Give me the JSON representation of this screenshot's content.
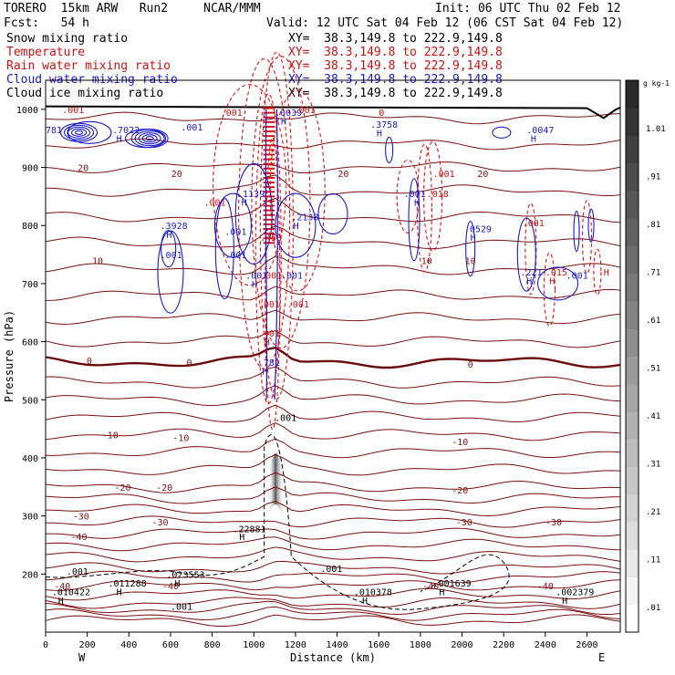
{
  "header": {
    "model": "TORERO  15km ARW   Run2     NCAR/MMM",
    "forecast": "Fcst:   54 h",
    "init": "Init: 06 UTC Thu 02 Feb 12",
    "valid": "Valid: 12 UTC Sat 04 Feb 12 (06 CST Sat 04 Feb 12)"
  },
  "legend": [
    {
      "label": "Snow mixing ratio",
      "xy": "XY=  38.3,149.8 to 222.9,149.8",
      "color": "#000000"
    },
    {
      "label": "Temperature",
      "xy": "XY=  38.3,149.8 to 222.9,149.8",
      "color": "#cc1111"
    },
    {
      "label": "Rain water mixing ratio",
      "xy": "XY=  38.3,149.8 to 222.9,149.8",
      "color": "#cc1111"
    },
    {
      "label": "Cloud water mixing ratio",
      "xy": "XY=  38.3,149.8 to 222.9,149.8",
      "color": "#1a1acc"
    },
    {
      "label": "Cloud ice mixing ratio",
      "xy": "XY=  38.3,149.8 to 222.9,149.8",
      "color": "#000000"
    }
  ],
  "chart_data": {
    "type": "contour-cross-section",
    "xlabel": "Distance (km)",
    "ylabel": "Pressure (hPa)",
    "xlim": [
      0,
      2760
    ],
    "ylim": [
      1050,
      100
    ],
    "xticks": [
      "0",
      "200",
      "400",
      "600",
      "800",
      "1000",
      "1200",
      "1400",
      "1600",
      "1800",
      "2000",
      "2200",
      "2400",
      "2600"
    ],
    "yticks": [
      "200",
      "300",
      "400",
      "500",
      "600",
      "700",
      "800",
      "900",
      "1000"
    ],
    "x_ends": {
      "left": "W",
      "right": "E"
    },
    "colorbar": {
      "unit": "g kg-1",
      "ticks": [
        "1.01",
        ".91",
        ".81",
        ".71",
        ".61",
        ".51",
        ".41",
        ".31",
        ".21",
        ".11",
        ".01"
      ],
      "gray_low": "#ffffff",
      "gray_high": "#2a2a2a"
    },
    "colors": {
      "temperature": "#7a1010",
      "zero_isotherm": "#6b0a0a",
      "rain": "#dd1111",
      "cloud_water": "#1a1acc",
      "cloud_ice": "#000000",
      "snow_shading": "#444444"
    },
    "temperature_labels": [
      {
        "v": "-40",
        "x": 80,
        "p": 180
      },
      {
        "v": "-40",
        "x": 600,
        "p": 180
      },
      {
        "v": "-40",
        "x": 1850,
        "p": 180
      },
      {
        "v": "-40",
        "x": 2400,
        "p": 180
      },
      {
        "v": "-40",
        "x": 160,
        "p": 265
      },
      {
        "v": "-30",
        "x": 170,
        "p": 300
      },
      {
        "v": "-30",
        "x": 550,
        "p": 290
      },
      {
        "v": "-30",
        "x": 2010,
        "p": 290
      },
      {
        "v": "-30",
        "x": 2440,
        "p": 290
      },
      {
        "v": "-20",
        "x": 370,
        "p": 350
      },
      {
        "v": "-20",
        "x": 570,
        "p": 350
      },
      {
        "v": "-20",
        "x": 1990,
        "p": 345
      },
      {
        "v": "-10",
        "x": 310,
        "p": 440
      },
      {
        "v": "-10",
        "x": 650,
        "p": 435
      },
      {
        "v": "-10",
        "x": 1990,
        "p": 428
      },
      {
        "v": "0",
        "x": 210,
        "p": 568
      },
      {
        "v": "0",
        "x": 690,
        "p": 565
      },
      {
        "v": "0",
        "x": 2040,
        "p": 562
      },
      {
        "v": "10",
        "x": 250,
        "p": 740
      },
      {
        "v": "10",
        "x": 1830,
        "p": 740
      },
      {
        "v": "10",
        "x": 2040,
        "p": 740
      },
      {
        "v": "20",
        "x": 180,
        "p": 900
      },
      {
        "v": "20",
        "x": 630,
        "p": 890
      },
      {
        "v": "20",
        "x": 1430,
        "p": 890
      },
      {
        "v": "20",
        "x": 2100,
        "p": 890
      }
    ],
    "extrema_labels": [
      {
        "t": "H",
        "x": 60,
        "p": 155,
        "c": "blk"
      },
      {
        "t": ".010422",
        "x": 30,
        "p": 170,
        "c": "blk"
      },
      {
        "t": "H",
        "x": 340,
        "p": 170,
        "c": "blk"
      },
      {
        "t": ".011288",
        "x": 300,
        "p": 185,
        "c": "blk"
      },
      {
        "t": "H",
        "x": 620,
        "p": 185,
        "c": "blk"
      },
      {
        "t": ".023553",
        "x": 580,
        "p": 200,
        "c": "blk"
      },
      {
        "t": ".001",
        "x": 100,
        "p": 205,
        "c": "blk"
      },
      {
        "t": ".001",
        "x": 600,
        "p": 145,
        "c": "blk"
      },
      {
        "t": "H",
        "x": 930,
        "p": 265,
        "c": "blk"
      },
      {
        "t": ".22881",
        "x": 900,
        "p": 278,
        "c": "blk"
      },
      {
        "t": "H",
        "x": 1520,
        "p": 155,
        "c": "blk"
      },
      {
        "t": ".010378",
        "x": 1480,
        "p": 170,
        "c": "blk"
      },
      {
        "t": "H",
        "x": 1890,
        "p": 170,
        "c": "blk"
      },
      {
        "t": ".001639",
        "x": 1860,
        "p": 185,
        "c": "blk"
      },
      {
        "t": "H",
        "x": 2480,
        "p": 155,
        "c": "blk"
      },
      {
        "t": ".002379",
        "x": 2450,
        "p": 170,
        "c": "blk"
      },
      {
        "t": ".001",
        "x": 1320,
        "p": 210,
        "c": "blk"
      },
      {
        "t": ".001",
        "x": 1100,
        "p": 470,
        "c": "blk"
      },
      {
        "t": "H",
        "x": 1040,
        "p": 550,
        "c": "blu"
      },
      {
        "t": ".781",
        "x": 1020,
        "p": 565,
        "c": "blu"
      },
      {
        "t": "H",
        "x": 1050,
        "p": 600,
        "c": "red"
      },
      {
        "t": ".401",
        "x": 1020,
        "p": 615,
        "c": "red"
      },
      {
        "t": ".001",
        "x": 1020,
        "p": 665,
        "c": "red"
      },
      {
        "t": ".001",
        "x": 1160,
        "p": 665,
        "c": "red"
      },
      {
        "t": "H",
        "x": 990,
        "p": 700,
        "c": "blu"
      },
      {
        "t": ".001",
        "x": 960,
        "p": 715,
        "c": "blu"
      },
      {
        "t": ".001",
        "x": 1030,
        "p": 715,
        "c": "red"
      },
      {
        "t": ".001",
        "x": 1130,
        "p": 715,
        "c": "blu"
      },
      {
        "t": ".001",
        "x": 550,
        "p": 750,
        "c": "blu"
      },
      {
        "t": ".001",
        "x": 860,
        "p": 750,
        "c": "blu"
      },
      {
        "t": "H",
        "x": 580,
        "p": 785,
        "c": "blu"
      },
      {
        "t": ".3928",
        "x": 550,
        "p": 800,
        "c": "blu"
      },
      {
        "t": ".001",
        "x": 860,
        "p": 790,
        "c": "blu"
      },
      {
        "t": ".453",
        "x": 1030,
        "p": 780,
        "c": "red"
      },
      {
        "t": ".001",
        "x": 760,
        "p": 840,
        "c": "red"
      },
      {
        "t": "H",
        "x": 940,
        "p": 840,
        "c": "blu"
      },
      {
        "t": ".1139",
        "x": 920,
        "p": 855,
        "c": "blu"
      },
      {
        "t": "H",
        "x": 1190,
        "p": 800,
        "c": "blu"
      },
      {
        "t": ".2138",
        "x": 1180,
        "p": 815,
        "c": "blu"
      },
      {
        "t": "H",
        "x": 1770,
        "p": 840,
        "c": "blu"
      },
      {
        "t": ".001",
        "x": 1720,
        "p": 855,
        "c": "blu"
      },
      {
        "t": ".018",
        "x": 1830,
        "p": 855,
        "c": "red"
      },
      {
        "t": ".001",
        "x": 1860,
        "p": 890,
        "c": "red"
      },
      {
        "t": "H",
        "x": 2040,
        "p": 780,
        "c": "blu"
      },
      {
        "t": ".0529",
        "x": 2010,
        "p": 795,
        "c": "blu"
      },
      {
        "t": ".001",
        "x": 2290,
        "p": 805,
        "c": "red"
      },
      {
        "t": "H",
        "x": 2310,
        "p": 705,
        "c": "blu"
      },
      {
        "t": ".221",
        "x": 2280,
        "p": 720,
        "c": "blu"
      },
      {
        "t": "H",
        "x": 2420,
        "p": 705,
        "c": "red"
      },
      {
        "t": ".015",
        "x": 2400,
        "p": 720,
        "c": "red"
      },
      {
        "t": ".001",
        "x": 2500,
        "p": 715,
        "c": "blu"
      },
      {
        "t": "H",
        "x": 2680,
        "p": 720,
        "c": "red"
      },
      {
        "t": "781",
        "x": 0,
        "p": 965,
        "c": "blu"
      },
      {
        "t": "H",
        "x": 340,
        "p": 950,
        "c": "blu"
      },
      {
        "t": ".7022",
        "x": 320,
        "p": 965,
        "c": "blu"
      },
      {
        "t": ".001",
        "x": 650,
        "p": 970,
        "c": "blu"
      },
      {
        "t": ".001",
        "x": 80,
        "p": 1000,
        "c": "red"
      },
      {
        "t": ".001",
        "x": 840,
        "p": 995,
        "c": "red"
      },
      {
        "t": "H",
        "x": 1130,
        "p": 980,
        "c": "blu"
      },
      {
        "t": ".0039",
        "x": 1100,
        "p": 995,
        "c": "blu"
      },
      {
        "t": ".001",
        "x": 1190,
        "p": 1000,
        "c": "red"
      },
      {
        "t": "H",
        "x": 1590,
        "p": 960,
        "c": "blu"
      },
      {
        "t": ".3758",
        "x": 1560,
        "p": 975,
        "c": "blu"
      },
      {
        "t": "0",
        "x": 1600,
        "p": 995,
        "c": "red"
      },
      {
        "t": "H",
        "x": 2330,
        "p": 950,
        "c": "blu"
      },
      {
        "t": ".0047",
        "x": 2310,
        "p": 965,
        "c": "blu"
      }
    ],
    "surface_line": true
  }
}
